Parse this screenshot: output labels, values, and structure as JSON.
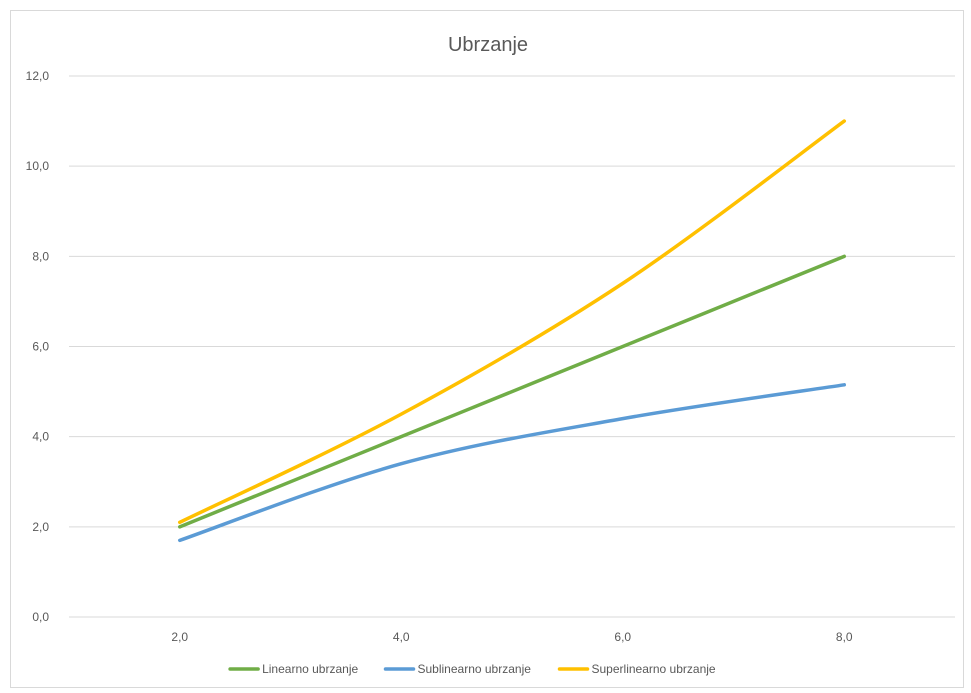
{
  "chart_data": {
    "type": "line",
    "title": "Ubrzanje",
    "xlabel": "",
    "ylabel": "",
    "xlim": [
      1,
      9
    ],
    "ylim": [
      0,
      12
    ],
    "x_ticks": [
      2,
      4,
      6,
      8
    ],
    "x_tick_labels": [
      "2,0",
      "4,0",
      "6,0",
      "8,0"
    ],
    "y_ticks": [
      0,
      2,
      4,
      6,
      8,
      10,
      12
    ],
    "y_tick_labels": [
      "0,0",
      "2,0",
      "4,0",
      "6,0",
      "8,0",
      "10,0",
      "12,0"
    ],
    "grid": "horizontal",
    "legend_position": "bottom",
    "series": [
      {
        "name": "Linearno ubrzanje",
        "color": "#70ad47",
        "x": [
          2,
          4,
          6,
          8
        ],
        "y": [
          2.0,
          4.0,
          6.0,
          8.0
        ]
      },
      {
        "name": "Sublinearno ubrzanje",
        "color": "#5b9bd5",
        "x": [
          2,
          4,
          6,
          8
        ],
        "y": [
          1.7,
          3.4,
          4.4,
          5.15
        ]
      },
      {
        "name": "Superlinearno ubrzanje",
        "color": "#ffc000",
        "x": [
          2,
          4,
          6,
          8
        ],
        "y": [
          2.1,
          4.5,
          7.4,
          11.0
        ]
      }
    ]
  }
}
